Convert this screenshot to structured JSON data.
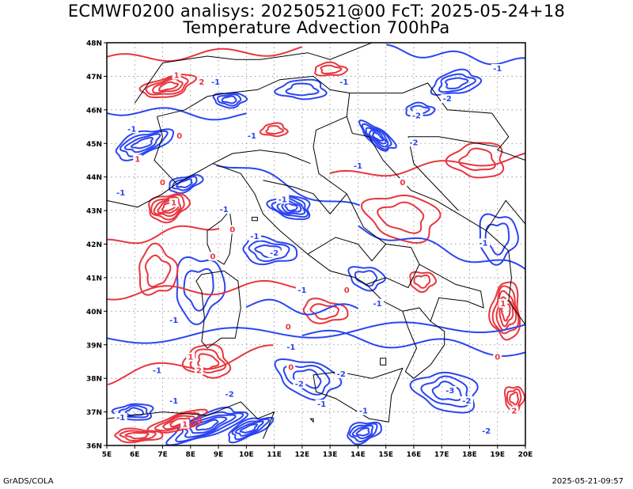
{
  "title_line1": "ECMWF0200 analisys: 20250521@00 FcT: 2025-05-24+18",
  "title_line2": "Temperature Advection 700hPa",
  "footer_left": "GrADS/COLA",
  "footer_right": "2025-05-21-09:57",
  "map": {
    "lon_min": 5,
    "lon_max": 20,
    "lat_min": 36,
    "lat_max": 48,
    "lon_labels": [
      "5E",
      "6E",
      "7E",
      "8E",
      "9E",
      "10E",
      "11E",
      "12E",
      "13E",
      "14E",
      "15E",
      "16E",
      "17E",
      "18E",
      "19E",
      "20E"
    ],
    "lat_labels": [
      "36N",
      "37N",
      "38N",
      "39N",
      "40N",
      "41N",
      "42N",
      "43N",
      "44N",
      "45N",
      "46N",
      "47N",
      "48N"
    ],
    "colors": {
      "warm": "#e8363f",
      "cold": "#2b45f0",
      "coast": "#000000",
      "grid": "#888888"
    },
    "contour_labels": [
      {
        "text": "1",
        "c": "warm",
        "lon": 7.5,
        "lat": 47.0
      },
      {
        "text": "2",
        "c": "warm",
        "lon": 8.4,
        "lat": 46.8
      },
      {
        "text": "-1",
        "c": "cold",
        "lon": 8.9,
        "lat": 46.8
      },
      {
        "text": "-1",
        "c": "cold",
        "lon": 5.9,
        "lat": 45.4
      },
      {
        "text": "0",
        "c": "warm",
        "lon": 7.6,
        "lat": 45.2
      },
      {
        "text": "1",
        "c": "warm",
        "lon": 6.1,
        "lat": 44.5
      },
      {
        "text": "0",
        "c": "warm",
        "lon": 7.0,
        "lat": 43.8
      },
      {
        "text": "-1",
        "c": "cold",
        "lon": 5.5,
        "lat": 43.5
      },
      {
        "text": "1",
        "c": "warm",
        "lon": 7.4,
        "lat": 43.2
      },
      {
        "text": "-1",
        "c": "cold",
        "lon": 9.2,
        "lat": 43.0
      },
      {
        "text": "0",
        "c": "warm",
        "lon": 9.5,
        "lat": 42.4
      },
      {
        "text": "0",
        "c": "warm",
        "lon": 8.8,
        "lat": 41.6
      },
      {
        "text": "-1",
        "c": "cold",
        "lon": 10.3,
        "lat": 42.2
      },
      {
        "text": "-2",
        "c": "cold",
        "lon": 11.0,
        "lat": 41.7
      },
      {
        "text": "-1",
        "c": "cold",
        "lon": 11.3,
        "lat": 43.3
      },
      {
        "text": "-1",
        "c": "cold",
        "lon": 10.2,
        "lat": 45.2
      },
      {
        "text": "-1",
        "c": "cold",
        "lon": 13.5,
        "lat": 46.8
      },
      {
        "text": "-2",
        "c": "cold",
        "lon": 16.1,
        "lat": 45.8
      },
      {
        "text": "-2",
        "c": "cold",
        "lon": 16.0,
        "lat": 45.0
      },
      {
        "text": "-1",
        "c": "cold",
        "lon": 14.0,
        "lat": 44.3
      },
      {
        "text": "0",
        "c": "warm",
        "lon": 15.6,
        "lat": 43.8
      },
      {
        "text": "-2",
        "c": "cold",
        "lon": 17.2,
        "lat": 46.3
      },
      {
        "text": "-1",
        "c": "cold",
        "lon": 19.0,
        "lat": 47.2
      },
      {
        "text": "-1",
        "c": "cold",
        "lon": 18.5,
        "lat": 42.0
      },
      {
        "text": "1",
        "c": "warm",
        "lon": 19.2,
        "lat": 40.2
      },
      {
        "text": "0",
        "c": "warm",
        "lon": 19.0,
        "lat": 38.6
      },
      {
        "text": "-1",
        "c": "cold",
        "lon": 14.7,
        "lat": 40.2
      },
      {
        "text": "0",
        "c": "warm",
        "lon": 13.6,
        "lat": 40.6
      },
      {
        "text": "-1",
        "c": "cold",
        "lon": 12.0,
        "lat": 40.6
      },
      {
        "text": "-1",
        "c": "cold",
        "lon": 7.4,
        "lat": 39.7
      },
      {
        "text": "0",
        "c": "warm",
        "lon": 11.5,
        "lat": 39.5
      },
      {
        "text": "-1",
        "c": "cold",
        "lon": 11.6,
        "lat": 38.9
      },
      {
        "text": "0",
        "c": "warm",
        "lon": 11.6,
        "lat": 38.3
      },
      {
        "text": "-2",
        "c": "cold",
        "lon": 11.9,
        "lat": 37.8
      },
      {
        "text": "-2",
        "c": "cold",
        "lon": 13.4,
        "lat": 38.1
      },
      {
        "text": "-1",
        "c": "cold",
        "lon": 12.7,
        "lat": 37.2
      },
      {
        "text": "1",
        "c": "warm",
        "lon": 8.0,
        "lat": 38.6
      },
      {
        "text": "2",
        "c": "warm",
        "lon": 8.3,
        "lat": 38.2
      },
      {
        "text": "-1",
        "c": "cold",
        "lon": 6.8,
        "lat": 38.2
      },
      {
        "text": "-2",
        "c": "cold",
        "lon": 9.4,
        "lat": 37.5
      },
      {
        "text": "-1",
        "c": "cold",
        "lon": 7.4,
        "lat": 37.3
      },
      {
        "text": "1",
        "c": "warm",
        "lon": 7.8,
        "lat": 36.6
      },
      {
        "text": "-1",
        "c": "cold",
        "lon": 5.5,
        "lat": 36.8
      },
      {
        "text": "-3",
        "c": "cold",
        "lon": 17.3,
        "lat": 37.6
      },
      {
        "text": "-2",
        "c": "cold",
        "lon": 17.9,
        "lat": 37.3
      },
      {
        "text": "-1",
        "c": "cold",
        "lon": 14.2,
        "lat": 37.0
      },
      {
        "text": "-2",
        "c": "cold",
        "lon": 18.6,
        "lat": 36.4
      },
      {
        "text": "2",
        "c": "warm",
        "lon": 19.6,
        "lat": 37.0
      }
    ]
  }
}
